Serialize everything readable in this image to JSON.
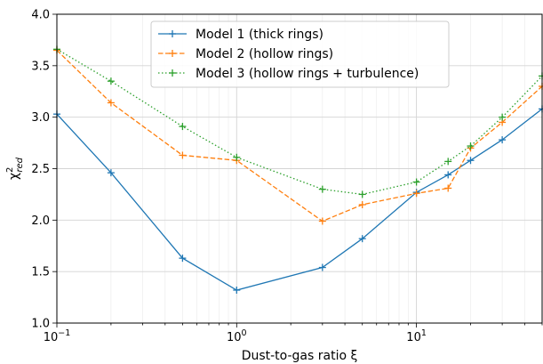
{
  "chart_data": {
    "type": "line",
    "xscale": "log",
    "xlim": [
      0.1,
      50
    ],
    "ylim": [
      1.0,
      4.0
    ],
    "grid": true,
    "legend_position": "top-center",
    "xlabel": "Dust-to-gas ratio ξ",
    "ylabel": "χ²red",
    "ylabel_parts": {
      "base": "χ",
      "sup": "2",
      "sub": "red"
    },
    "x_tick_labels": [
      {
        "value": 0.1,
        "base": "10",
        "exp": "−1"
      },
      {
        "value": 1,
        "base": "10",
        "exp": "0"
      },
      {
        "value": 10,
        "base": "10",
        "exp": "1"
      }
    ],
    "y_tick_labels": [
      "1.0",
      "1.5",
      "2.0",
      "2.5",
      "3.0",
      "3.5",
      "4.0"
    ],
    "series": [
      {
        "name": "Model 1 (thick rings)",
        "color": "#1f77b4",
        "linestyle": "solid",
        "x": [
          0.1,
          0.2,
          0.5,
          1,
          3,
          5,
          10,
          15,
          20,
          30,
          50
        ],
        "y": [
          3.03,
          2.46,
          1.63,
          1.32,
          1.54,
          1.82,
          2.27,
          2.44,
          2.58,
          2.78,
          3.08
        ]
      },
      {
        "name": "Model 2 (hollow rings)",
        "color": "#ff7f0e",
        "linestyle": "dashed",
        "x": [
          0.1,
          0.2,
          0.5,
          1,
          3,
          5,
          10,
          15,
          20,
          30,
          50
        ],
        "y": [
          3.65,
          3.14,
          2.63,
          2.58,
          1.99,
          2.15,
          2.26,
          2.31,
          2.7,
          2.95,
          3.3
        ]
      },
      {
        "name": "Model 3 (hollow rings + turbulence)",
        "color": "#2ca02c",
        "linestyle": "dotted",
        "x": [
          0.1,
          0.2,
          0.5,
          1,
          3,
          5,
          10,
          15,
          20,
          30,
          50
        ],
        "y": [
          3.66,
          3.35,
          2.91,
          2.61,
          2.3,
          2.25,
          2.37,
          2.57,
          2.72,
          3.0,
          3.4
        ]
      }
    ]
  }
}
